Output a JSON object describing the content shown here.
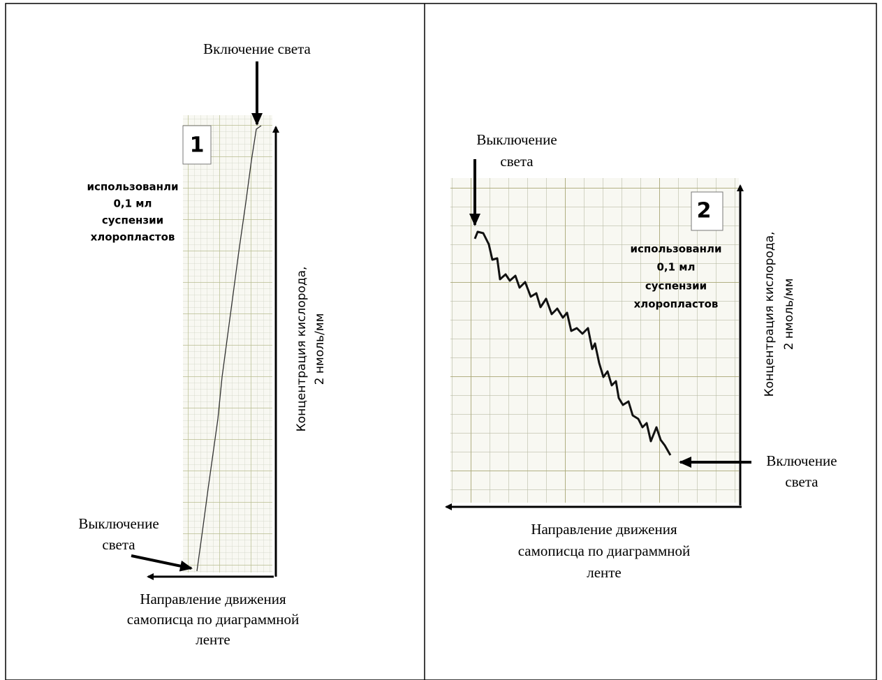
{
  "panels": [
    {
      "number": "1",
      "light_on": "Включение света",
      "light_off": [
        "Выключение",
        "света"
      ],
      "note": [
        "использованли",
        "0,1 мл",
        "суспензии",
        "хлоропластов"
      ],
      "y_axis_label": [
        "Концентрация кислорода,",
        "2 нмоль/мм"
      ],
      "x_axis_label": [
        "Направление движения",
        "самописца по диаграммной",
        "ленте"
      ]
    },
    {
      "number": "2",
      "light_off": [
        "Выключение",
        "света"
      ],
      "light_on": [
        "Включение",
        "света"
      ],
      "note": [
        "использованли",
        "0,1 мл",
        "суспензии",
        "хлоропластов"
      ],
      "y_axis_label": [
        "Концентрация кислорода,",
        "2 нмоль/мм"
      ],
      "x_axis_label": [
        "Направление движения",
        "самописца по диаграммной",
        "ленте"
      ]
    }
  ]
}
